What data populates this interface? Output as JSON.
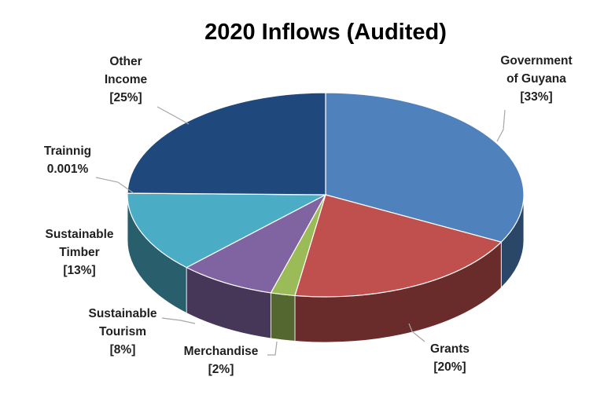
{
  "chart_data": {
    "type": "pie",
    "style": "3d",
    "title": "2020 Inflows (Audited)",
    "slices": [
      {
        "key": "gog",
        "label_lines": [
          "Government",
          "of  Guyana",
          "[33%]"
        ],
        "value": 33,
        "color": "#4f81bd"
      },
      {
        "key": "grants",
        "label_lines": [
          "Grants",
          "[20%]"
        ],
        "value": 20,
        "color": "#c0504d"
      },
      {
        "key": "merch",
        "label_lines": [
          "Merchandise",
          "[2%]"
        ],
        "value": 2,
        "color": "#9bbb59"
      },
      {
        "key": "tourism",
        "label_lines": [
          "Sustainable",
          "Tourism",
          "[8%]"
        ],
        "value": 8,
        "color": "#8064a2"
      },
      {
        "key": "timber",
        "label_lines": [
          "Sustainable",
          "Timber",
          "[13%]"
        ],
        "value": 13,
        "color": "#4bacc6"
      },
      {
        "key": "training",
        "label_lines": [
          "Trainnig",
          "0.001%"
        ],
        "value": 0.001,
        "color": "#f79646"
      },
      {
        "key": "other",
        "label_lines": [
          "Other",
          "Income",
          "[25%]"
        ],
        "value": 25,
        "color": "#1f497d"
      }
    ]
  }
}
